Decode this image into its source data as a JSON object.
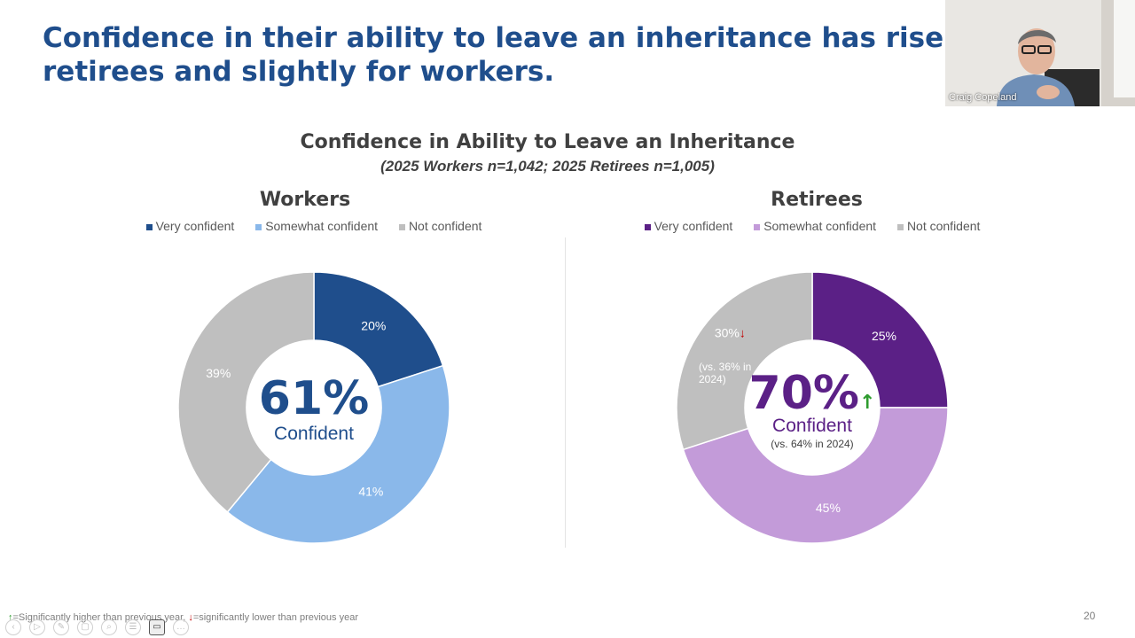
{
  "slide": {
    "title_line1": "Confidence in their ability to leave an inheritance has risen signific",
    "title_line2": "retirees and slightly for workers.",
    "page_number": "20",
    "footnote_up_icon": "↑",
    "footnote_up": "=Significantly higher than previous year, ",
    "footnote_down_icon": "↓",
    "footnote_down": "=significantly lower than previous year"
  },
  "presenter": {
    "name": "Craig Copeland"
  },
  "colors": {
    "title": "#1f4e8c",
    "workers_very": "#1f4e8c",
    "workers_somewhat": "#8ab8ea",
    "workers_not": "#bfbfbf",
    "retirees_very": "#5b2086",
    "retirees_somewhat": "#c39bd9",
    "retirees_not": "#bfbfbf",
    "up": "#2e9b2e",
    "down": "#c00000"
  },
  "chart_data": {
    "title": "Confidence in Ability to Leave an Inheritance",
    "subtitle": "(2025 Workers n=1,042; 2025 Retirees n=1,005)",
    "type": "pie",
    "charts": [
      {
        "name": "Workers",
        "type": "pie",
        "donut": true,
        "categories": [
          "Very confident",
          "Somewhat confident",
          "Not confident"
        ],
        "values": [
          20,
          41,
          39
        ],
        "labels": [
          "20%",
          "41%",
          "39%"
        ],
        "center_value": "61%",
        "center_label": "Confident",
        "colors": [
          "#1f4e8c",
          "#8ab8ea",
          "#bfbfbf"
        ],
        "legend_position": "top"
      },
      {
        "name": "Retirees",
        "type": "pie",
        "donut": true,
        "categories": [
          "Very confident",
          "Somewhat confident",
          "Not confident"
        ],
        "values": [
          25,
          45,
          30
        ],
        "labels": [
          "25%",
          "45%",
          "30%"
        ],
        "not_confident_arrow": "↓",
        "not_confident_note": "(vs. 36% in 2024)",
        "center_value": "70%",
        "center_arrow": "↑",
        "center_label": "Confident",
        "center_note": "(vs. 64% in 2024)",
        "colors": [
          "#5b2086",
          "#c39bd9",
          "#bfbfbf"
        ],
        "legend_position": "top"
      }
    ]
  },
  "controls": {
    "icons": [
      "prev-icon",
      "play-icon",
      "pen-icon",
      "copy-icon",
      "zoom-icon",
      "menu-icon",
      "camera-icon",
      "more-icon"
    ],
    "glyphs": [
      "‹",
      "▷",
      "✎",
      "▢",
      "⌕",
      "☰",
      "▭",
      "…"
    ]
  }
}
